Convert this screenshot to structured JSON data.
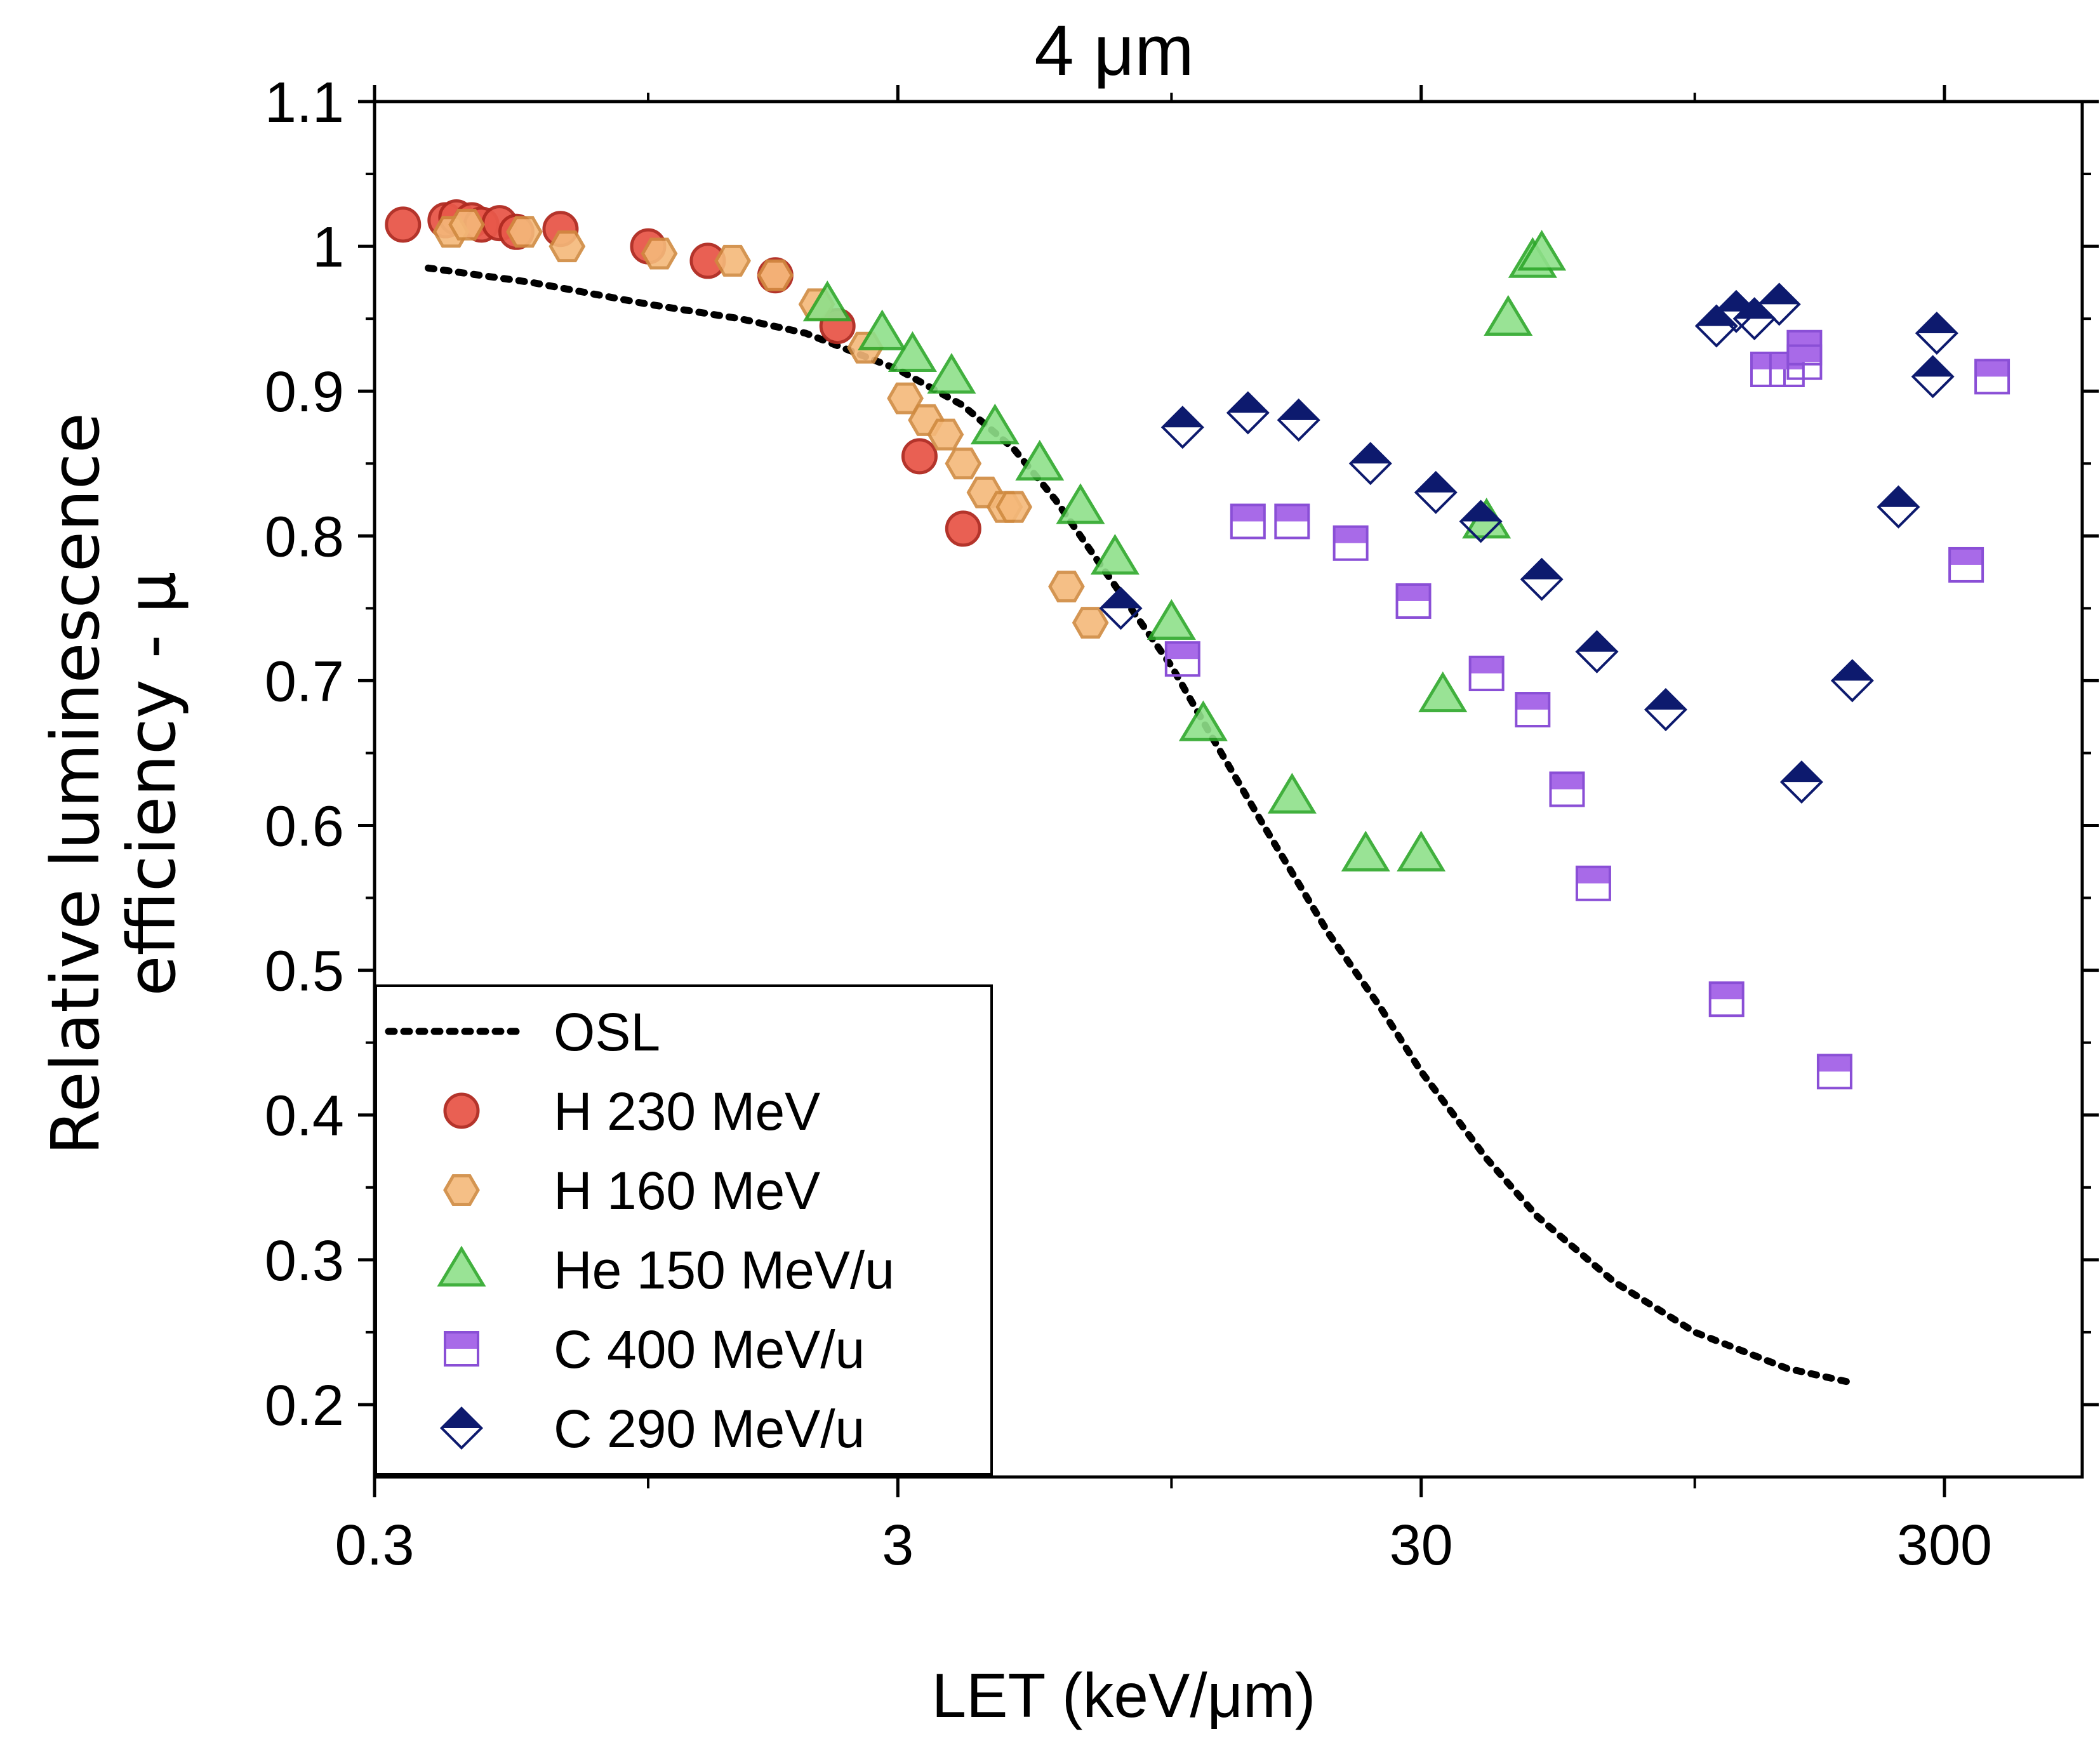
{
  "chart_data": {
    "type": "scatter",
    "title": "4 μm",
    "xlabel": "LET (keV/μm)",
    "ylabel_lines": [
      "Relative luminescence",
      "efficiency - μ"
    ],
    "xscale": "log",
    "xlim": [
      0.3,
      550
    ],
    "ylim": [
      0.15,
      1.1
    ],
    "x_ticks": [
      0.3,
      3,
      30,
      300
    ],
    "x_tick_labels": [
      "0.3",
      "3",
      "30",
      "300"
    ],
    "y_ticks": [
      0.2,
      0.3,
      0.4,
      0.5,
      0.6,
      0.7,
      0.8,
      0.9,
      1.0,
      1.1
    ],
    "y_tick_labels": [
      "0.2",
      "0.3",
      "0.4",
      "0.5",
      "0.6",
      "0.7",
      "0.8",
      "0.9",
      "1",
      "1.1"
    ],
    "legend_position": "bottom-left",
    "colors": {
      "osl": "#000000",
      "h230_fill": "#e8584a",
      "h230_edge": "#b02a20",
      "h160_fill": "#f5b97a",
      "h160_edge": "#d08a40",
      "he150_fill": "#8fe08a",
      "he150_edge": "#2da82a",
      "c400_fill": "#a86ae8",
      "c400_edge": "#8a4fd6",
      "c290_fill": "#0d1a6e",
      "c290_edge": "#0d1a6e"
    },
    "series": [
      {
        "name": "OSL",
        "marker": "dotted-line",
        "x": [
          0.38,
          0.6,
          1.0,
          1.5,
          2.0,
          3.0,
          4.0,
          5.0,
          6.0,
          7.0,
          8.0,
          10.0,
          12.0,
          15.0,
          20.0,
          25.0,
          30.0,
          40.0,
          50.0,
          70.0,
          100.0,
          150.0,
          200.0
        ],
        "y": [
          0.985,
          0.975,
          0.96,
          0.95,
          0.94,
          0.915,
          0.89,
          0.86,
          0.825,
          0.79,
          0.76,
          0.71,
          0.66,
          0.6,
          0.525,
          0.475,
          0.43,
          0.37,
          0.33,
          0.285,
          0.25,
          0.225,
          0.215
        ]
      },
      {
        "name": "H 230 MeV",
        "marker": "circle",
        "x": [
          0.34,
          0.41,
          0.43,
          0.46,
          0.48,
          0.52,
          0.56,
          0.68,
          1.0,
          1.3,
          1.75,
          2.3,
          3.3,
          4.0
        ],
        "y": [
          1.015,
          1.018,
          1.02,
          1.018,
          1.015,
          1.016,
          1.01,
          1.012,
          1.0,
          0.99,
          0.98,
          0.945,
          0.855,
          0.805
        ]
      },
      {
        "name": "H 160 MeV",
        "marker": "hexagon",
        "x": [
          0.42,
          0.45,
          0.58,
          0.7,
          1.05,
          1.45,
          1.75,
          2.1,
          2.6,
          3.1,
          3.4,
          3.7,
          4.0,
          4.4,
          4.8,
          5.0,
          6.3,
          7.0
        ],
        "y": [
          1.01,
          1.015,
          1.01,
          1.0,
          0.995,
          0.99,
          0.98,
          0.96,
          0.93,
          0.895,
          0.88,
          0.87,
          0.85,
          0.83,
          0.82,
          0.82,
          0.765,
          0.74
        ]
      },
      {
        "name": "He 150 MeV/u",
        "marker": "triangle",
        "x": [
          2.2,
          2.8,
          3.2,
          3.8,
          4.6,
          5.6,
          6.7,
          7.8,
          10.0,
          11.5,
          17.0,
          23.5,
          30.0,
          33.0,
          40.0,
          44.0,
          49.0,
          51.0
        ],
        "y": [
          0.96,
          0.94,
          0.925,
          0.91,
          0.875,
          0.85,
          0.82,
          0.785,
          0.74,
          0.67,
          0.62,
          0.58,
          0.58,
          0.69,
          0.81,
          0.95,
          0.99,
          0.995
        ]
      },
      {
        "name": "C 400 MeV/u",
        "marker": "half-square",
        "x": [
          10.5,
          14.0,
          17.0,
          22.0,
          29.0,
          40.0,
          49.0,
          57.0,
          64.0,
          115.0,
          138.0,
          150.0,
          162.0,
          162.0,
          185.0,
          330.0,
          370.0
        ],
        "y": [
          0.715,
          0.81,
          0.81,
          0.795,
          0.755,
          0.705,
          0.68,
          0.625,
          0.56,
          0.48,
          0.915,
          0.915,
          0.93,
          0.92,
          0.43,
          0.78,
          0.91
        ]
      },
      {
        "name": "C 290 MeV/u",
        "marker": "half-diamond",
        "x": [
          8.0,
          10.5,
          14.0,
          17.5,
          24.0,
          32.0,
          39.0,
          51.0,
          65.0,
          88.0,
          110.0,
          120.0,
          130.0,
          145.0,
          160.0,
          200.0,
          245.0,
          285.0,
          290.0
        ],
        "y": [
          0.75,
          0.875,
          0.885,
          0.88,
          0.85,
          0.83,
          0.81,
          0.77,
          0.72,
          0.68,
          0.945,
          0.955,
          0.95,
          0.96,
          0.63,
          0.7,
          0.82,
          0.91,
          0.94
        ]
      }
    ]
  }
}
